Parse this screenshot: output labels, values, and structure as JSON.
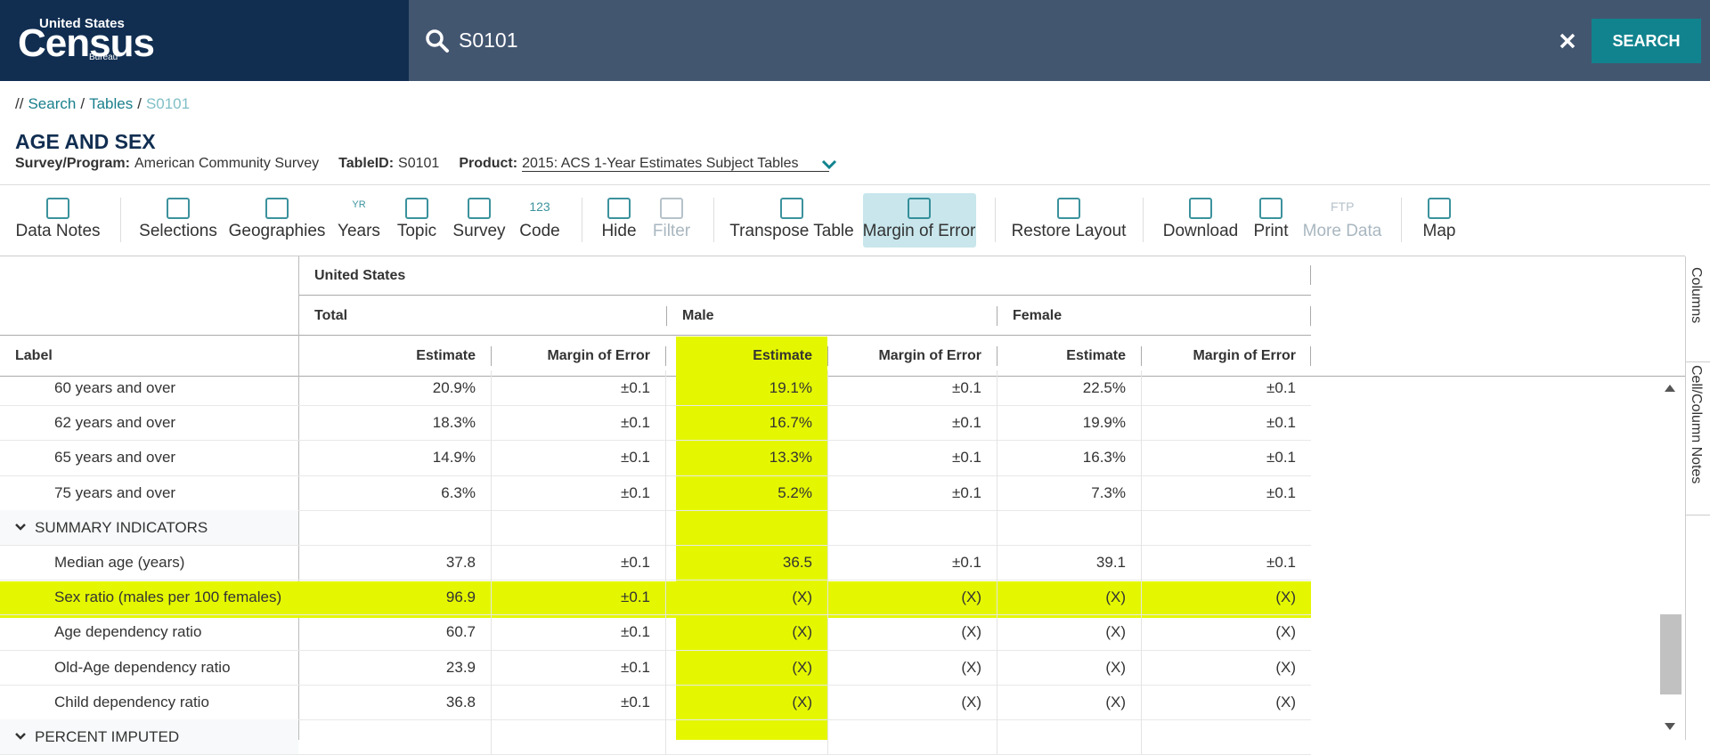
{
  "header": {
    "logo": {
      "line1": "United States",
      "line2": "Census",
      "line3": "Bureau"
    },
    "search_query": "S0101",
    "search_button": "SEARCH"
  },
  "breadcrumb": {
    "prefix": "//",
    "separator": "/",
    "items": [
      "Search",
      "Tables",
      "S0101"
    ]
  },
  "title": "AGE AND SEX",
  "meta": [
    {
      "label": "Survey/Program:",
      "value": "American Community Survey"
    },
    {
      "label": "TableID:",
      "value": "S0101"
    },
    {
      "label": "Product:",
      "value": "2015: ACS 1-Year Estimates Subject Tables"
    }
  ],
  "toolbar": [
    {
      "label": "Data Notes"
    },
    {
      "label": "Selections"
    },
    {
      "label": "Geographies"
    },
    {
      "label": "Years",
      "icon_text": "YR"
    },
    {
      "label": "Topic"
    },
    {
      "label": "Survey"
    },
    {
      "label": "Code",
      "icon_text": "123"
    },
    {
      "label": "Hide"
    },
    {
      "label": "Filter",
      "disabled": true
    },
    {
      "label": "Transpose Table"
    },
    {
      "label": "Margin of Error",
      "active": true
    },
    {
      "label": "Restore Layout"
    },
    {
      "label": "Download"
    },
    {
      "label": "Print"
    },
    {
      "label": "More Data",
      "icon_text": "FTP",
      "disabled": true
    },
    {
      "label": "Map"
    }
  ],
  "table": {
    "geography": "United States",
    "groups": [
      "Total",
      "Male",
      "Female"
    ],
    "label_header": "Label",
    "column_headers": [
      {
        "text": "Estimate"
      },
      {
        "text": "Margin of Error"
      },
      {
        "text": "Estimate",
        "highlighted": true
      },
      {
        "text": "Margin of Error"
      },
      {
        "text": "Estimate"
      },
      {
        "text": "Margin of Error"
      }
    ],
    "rows": [
      {
        "label": "60 years and over",
        "cells": [
          "20.9%",
          "±0.1",
          "19.1%",
          "±0.1",
          "22.5%",
          "±0.1"
        ]
      },
      {
        "label": "62 years and over",
        "cells": [
          "18.3%",
          "±0.1",
          "16.7%",
          "±0.1",
          "19.9%",
          "±0.1"
        ]
      },
      {
        "label": "65 years and over",
        "cells": [
          "14.9%",
          "±0.1",
          "13.3%",
          "±0.1",
          "16.3%",
          "±0.1"
        ]
      },
      {
        "label": "75 years and over",
        "cells": [
          "6.3%",
          "±0.1",
          "5.2%",
          "±0.1",
          "7.3%",
          "±0.1"
        ]
      },
      {
        "label": "SUMMARY INDICATORS",
        "section": true
      },
      {
        "label": "Median age (years)",
        "cells": [
          "37.8",
          "±0.1",
          "36.5",
          "±0.1",
          "39.1",
          "±0.1"
        ]
      },
      {
        "label": "Sex ratio (males per 100 females)",
        "highlighted": true,
        "cells": [
          "96.9",
          "±0.1",
          "(X)",
          "(X)",
          "(X)",
          "(X)"
        ]
      },
      {
        "label": "Age dependency ratio",
        "cells": [
          "60.7",
          "±0.1",
          "(X)",
          "(X)",
          "(X)",
          "(X)"
        ]
      },
      {
        "label": "Old-Age dependency ratio",
        "cells": [
          "23.9",
          "±0.1",
          "(X)",
          "(X)",
          "(X)",
          "(X)"
        ]
      },
      {
        "label": "Child dependency ratio",
        "cells": [
          "36.8",
          "±0.1",
          "(X)",
          "(X)",
          "(X)",
          "(X)"
        ]
      },
      {
        "label": "PERCENT IMPUTED",
        "section": true
      }
    ]
  },
  "side_tabs": [
    "Columns",
    "Cell/Column Notes"
  ]
}
